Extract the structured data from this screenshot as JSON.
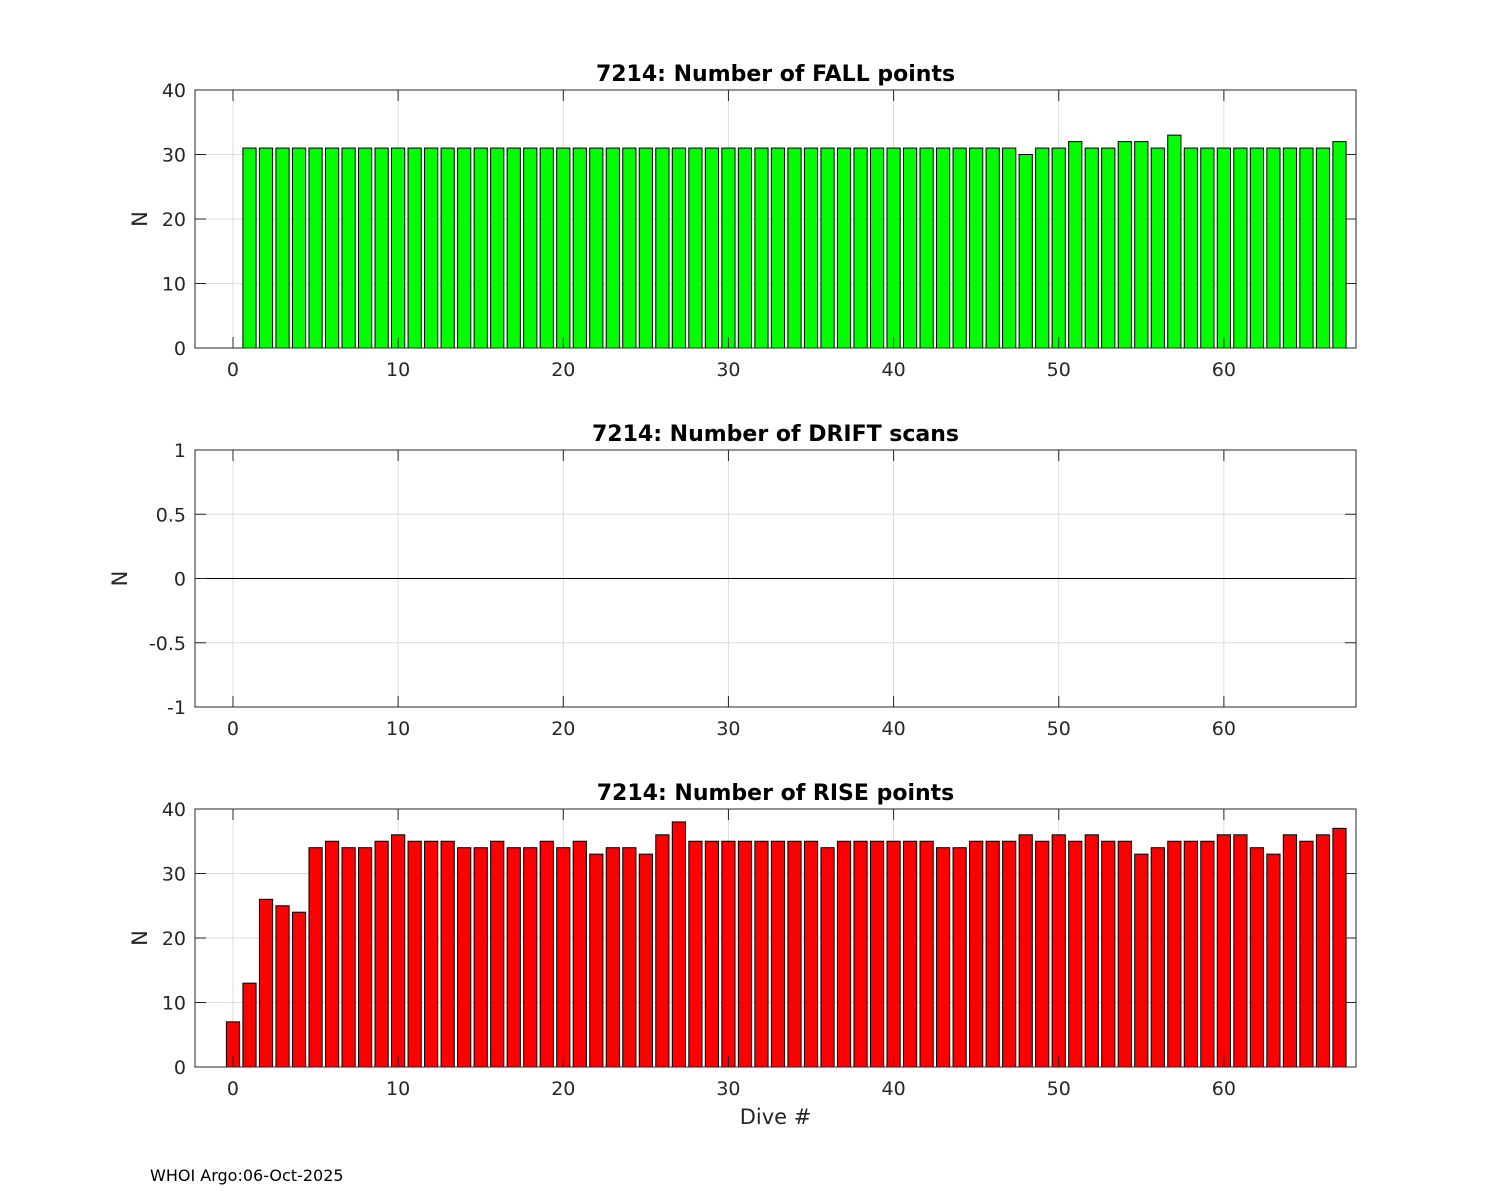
{
  "chart_data": [
    {
      "type": "bar",
      "title": "7214: Number of FALL points",
      "xlabel": "",
      "ylabel": "N",
      "xlim": [
        -2.3,
        68.0
      ],
      "ylim": [
        0,
        40
      ],
      "xticks": [
        0,
        10,
        20,
        30,
        40,
        50,
        60
      ],
      "yticks": [
        0,
        10,
        20,
        30,
        40
      ],
      "ytick_labels": [
        "0",
        "10",
        "20",
        "30",
        "40"
      ],
      "grid": true,
      "bar_color": "#00ff00",
      "x": [
        1,
        2,
        3,
        4,
        5,
        6,
        7,
        8,
        9,
        10,
        11,
        12,
        13,
        14,
        15,
        16,
        17,
        18,
        19,
        20,
        21,
        22,
        23,
        24,
        25,
        26,
        27,
        28,
        29,
        30,
        31,
        32,
        33,
        34,
        35,
        36,
        37,
        38,
        39,
        40,
        41,
        42,
        43,
        44,
        45,
        46,
        47,
        48,
        49,
        50,
        51,
        52,
        53,
        54,
        55,
        56,
        57,
        58,
        59,
        60,
        61,
        62,
        63,
        64,
        65,
        66,
        67
      ],
      "values": [
        31,
        31,
        31,
        31,
        31,
        31,
        31,
        31,
        31,
        31,
        31,
        31,
        31,
        31,
        31,
        31,
        31,
        31,
        31,
        31,
        31,
        31,
        31,
        31,
        31,
        31,
        31,
        31,
        31,
        31,
        31,
        31,
        31,
        31,
        31,
        31,
        31,
        31,
        31,
        31,
        31,
        31,
        31,
        31,
        31,
        31,
        31,
        30,
        31,
        31,
        32,
        31,
        31,
        32,
        32,
        31,
        33,
        31,
        31,
        31,
        31,
        31,
        31,
        31,
        31,
        31,
        32
      ]
    },
    {
      "type": "bar",
      "title": "7214: Number of DRIFT scans",
      "xlabel": "",
      "ylabel": "N",
      "xlim": [
        -2.3,
        68.0
      ],
      "ylim": [
        -1,
        1
      ],
      "xticks": [
        0,
        10,
        20,
        30,
        40,
        50,
        60
      ],
      "yticks": [
        -1,
        -0.5,
        0,
        0.5,
        1
      ],
      "ytick_labels": [
        "-1",
        "-0.5",
        "0",
        "0.5",
        "1"
      ],
      "grid": true,
      "bar_color": "#0000ff",
      "x": [],
      "values": []
    },
    {
      "type": "bar",
      "title": "7214: Number of RISE points",
      "xlabel": "Dive #",
      "ylabel": "N",
      "xlim": [
        -2.3,
        68.0
      ],
      "ylim": [
        0,
        40
      ],
      "xticks": [
        0,
        10,
        20,
        30,
        40,
        50,
        60
      ],
      "yticks": [
        0,
        10,
        20,
        30,
        40
      ],
      "ytick_labels": [
        "0",
        "10",
        "20",
        "30",
        "40"
      ],
      "grid": true,
      "bar_color": "#ff0000",
      "x": [
        0,
        1,
        2,
        3,
        4,
        5,
        6,
        7,
        8,
        9,
        10,
        11,
        12,
        13,
        14,
        15,
        16,
        17,
        18,
        19,
        20,
        21,
        22,
        23,
        24,
        25,
        26,
        27,
        28,
        29,
        30,
        31,
        32,
        33,
        34,
        35,
        36,
        37,
        38,
        39,
        40,
        41,
        42,
        43,
        44,
        45,
        46,
        47,
        48,
        49,
        50,
        51,
        52,
        53,
        54,
        55,
        56,
        57,
        58,
        59,
        60,
        61,
        62,
        63,
        64,
        65,
        66,
        67
      ],
      "values": [
        7,
        13,
        26,
        25,
        24,
        34,
        35,
        34,
        34,
        35,
        36,
        35,
        35,
        35,
        34,
        34,
        35,
        34,
        34,
        35,
        34,
        35,
        33,
        34,
        34,
        33,
        36,
        38,
        35,
        35,
        35,
        35,
        35,
        35,
        35,
        35,
        34,
        35,
        35,
        35,
        35,
        35,
        35,
        34,
        34,
        35,
        35,
        35,
        36,
        35,
        36,
        35,
        36,
        35,
        35,
        33,
        34,
        35,
        35,
        35,
        36,
        36,
        34,
        33,
        36,
        35,
        36,
        37
      ]
    }
  ],
  "footer": "WHOI Argo:06-Oct-2025"
}
